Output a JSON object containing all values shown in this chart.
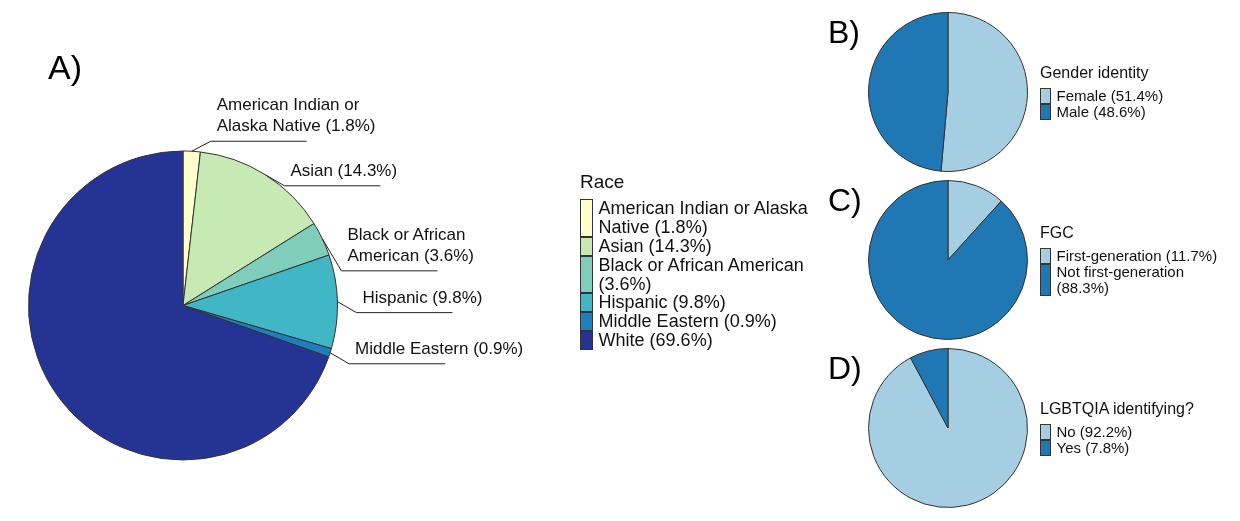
{
  "chart_data": [
    {
      "type": "pie",
      "title": "A)",
      "legend_title": "Race",
      "legend": "right",
      "categories": [
        "American Indian or Alaska Native (1.8%)",
        "Asian (14.3%)",
        "Black or African American (3.6%)",
        "Hispanic (9.8%)",
        "Middle Eastern (0.9%)",
        "White (69.6%)"
      ],
      "values": [
        1.8,
        14.3,
        3.6,
        9.8,
        0.9,
        69.6
      ],
      "colors": [
        "#ffffcc",
        "#c7e9b4",
        "#7fcdbb",
        "#41b6c4",
        "#1d7fc0",
        "#253494"
      ],
      "value_labels": [
        "American Indian or Alaska Native (1.8%)",
        "Asian (14.3%)",
        "Black or African American (3.6%)",
        "Hispanic (9.8%)",
        "Middle Eastern (0.9%)",
        null
      ]
    },
    {
      "type": "pie",
      "title": "B)",
      "legend_title": "Gender identity",
      "legend": "right",
      "categories": [
        "Female (51.4%)",
        "Male (48.6%)"
      ],
      "values": [
        51.4,
        48.6
      ],
      "colors": [
        "#a6cee3",
        "#1f78b4"
      ]
    },
    {
      "type": "pie",
      "title": "C)",
      "legend_title": "FGC",
      "legend": "right",
      "categories": [
        "First-generation (11.7%)",
        "Not first-generation (88.3%)"
      ],
      "values": [
        11.7,
        88.3
      ],
      "colors": [
        "#a6cee3",
        "#1f78b4"
      ]
    },
    {
      "type": "pie",
      "title": "D)",
      "legend_title": "LGBTQIA identifying?",
      "legend": "right",
      "categories": [
        "No (92.2%)",
        "Yes (7.8%)"
      ],
      "values": [
        92.2,
        7.8
      ],
      "colors": [
        "#a6cee3",
        "#1f78b4"
      ]
    }
  ]
}
